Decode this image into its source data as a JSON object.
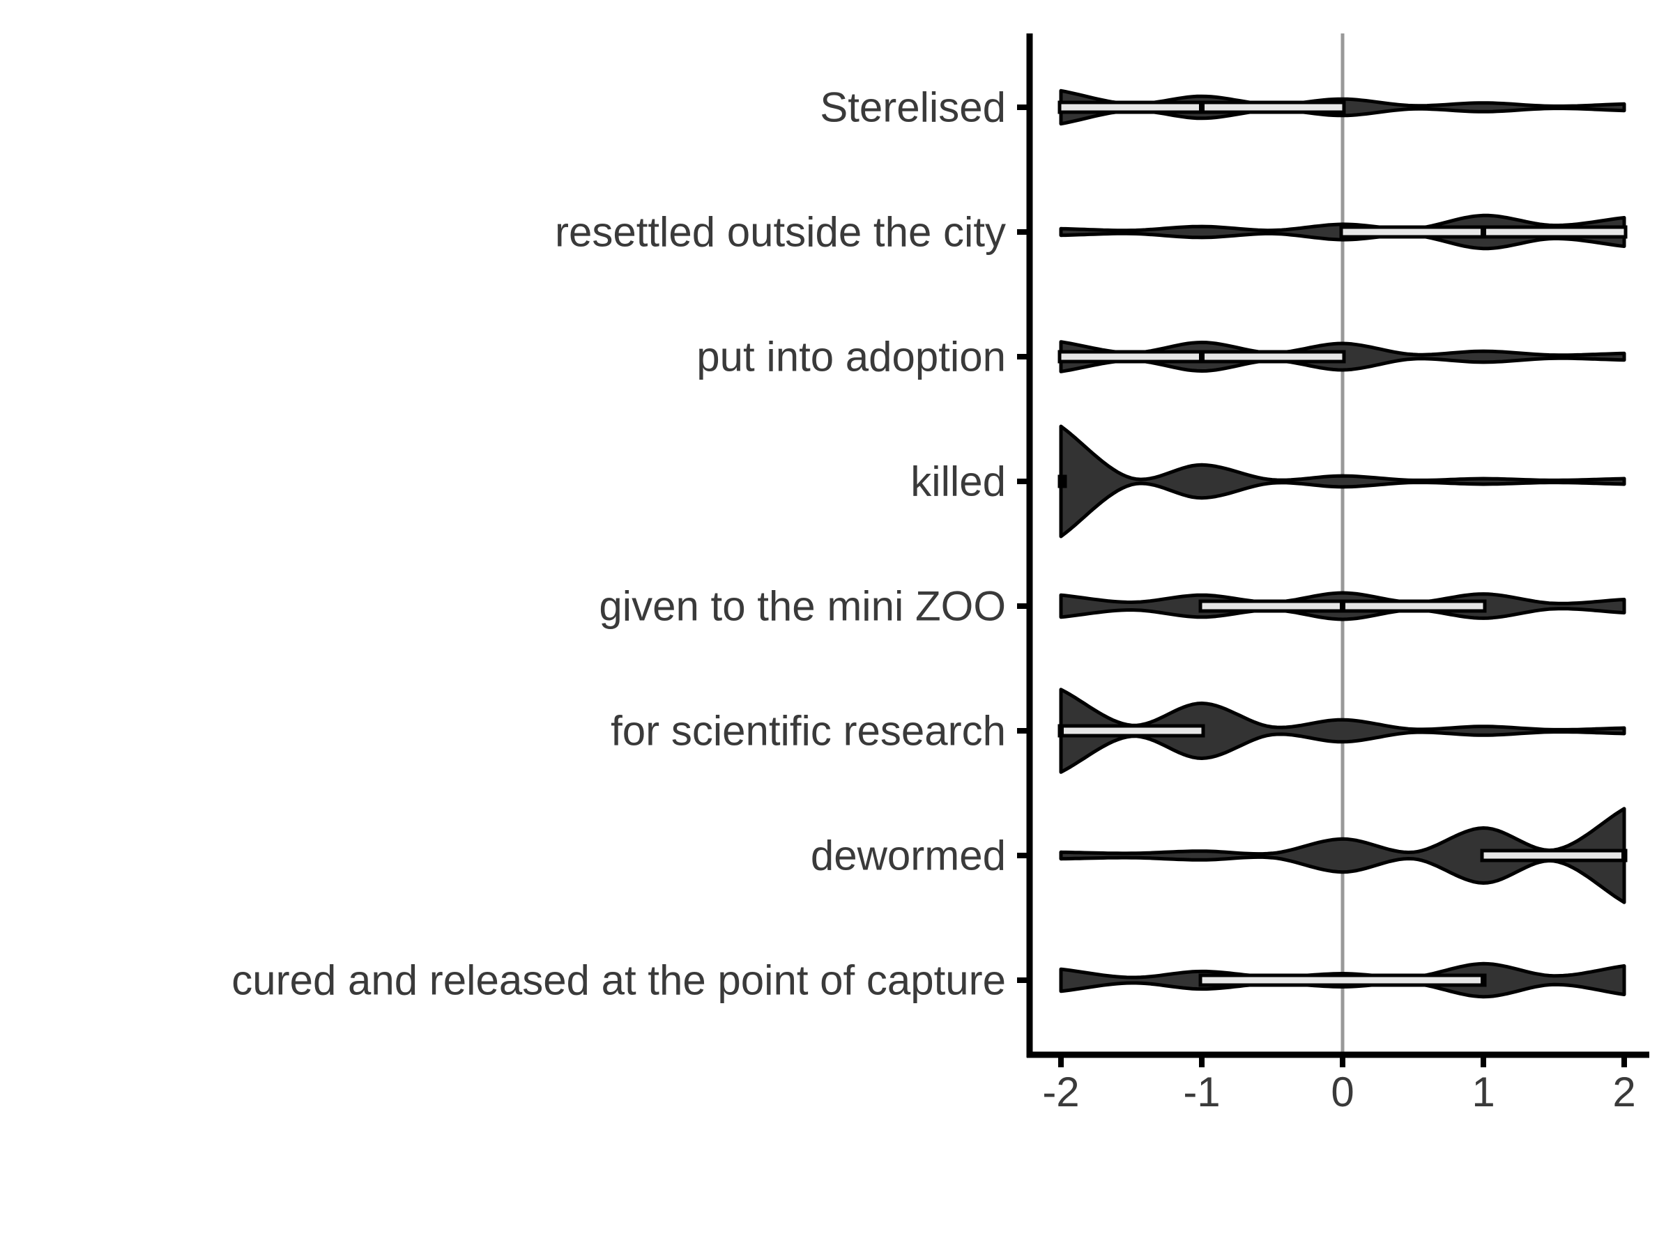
{
  "chart_data": {
    "type": "violin",
    "orientation": "horizontal",
    "title": "",
    "xlabel": "",
    "ylabel": "",
    "xlim": [
      -2.2,
      2.2
    ],
    "xticks": [
      "-2",
      "-1",
      "0",
      "1",
      "2"
    ],
    "reference_line_x": 0,
    "grid": false,
    "legend": "none",
    "colors": {
      "violin_fill": "#333333",
      "violin_stroke": "#000000",
      "box_fill": "#e6e6e6",
      "ref_line": "#999999",
      "axis": "#000000",
      "text": "#3a3a3a"
    },
    "categories": [
      {
        "label": "Sterelised",
        "density": [
          [
            -2,
            0.3
          ],
          [
            -1.5,
            0.06
          ],
          [
            -1,
            0.2
          ],
          [
            -0.5,
            0.05
          ],
          [
            0,
            0.15
          ],
          [
            0.5,
            0.03
          ],
          [
            1,
            0.08
          ],
          [
            1.5,
            0.02
          ],
          [
            2,
            0.06
          ]
        ],
        "box": {
          "q1": -2,
          "median": -1,
          "q3": 0
        }
      },
      {
        "label": "resettled outside the city",
        "density": [
          [
            -2,
            0.06
          ],
          [
            -1.5,
            0.03
          ],
          [
            -1,
            0.1
          ],
          [
            -0.5,
            0.03
          ],
          [
            0,
            0.14
          ],
          [
            0.5,
            0.06
          ],
          [
            1,
            0.3
          ],
          [
            1.5,
            0.12
          ],
          [
            2,
            0.26
          ]
        ],
        "box": {
          "q1": 0,
          "median": 1,
          "q3": 2
        }
      },
      {
        "label": "put into adoption",
        "density": [
          [
            -2,
            0.27
          ],
          [
            -1.5,
            0.07
          ],
          [
            -1,
            0.26
          ],
          [
            -0.5,
            0.07
          ],
          [
            0,
            0.24
          ],
          [
            0.5,
            0.04
          ],
          [
            1,
            0.1
          ],
          [
            1.5,
            0.03
          ],
          [
            2,
            0.06
          ]
        ],
        "box": {
          "q1": -2,
          "median": -1,
          "q3": 0
        }
      },
      {
        "label": "killed",
        "density": [
          [
            -2,
            1.0
          ],
          [
            -1.5,
            0.06
          ],
          [
            -1,
            0.3
          ],
          [
            -0.5,
            0.03
          ],
          [
            0,
            0.1
          ],
          [
            0.5,
            0.02
          ],
          [
            1,
            0.05
          ],
          [
            1.5,
            0.02
          ],
          [
            2,
            0.05
          ]
        ],
        "box": {
          "q1": -2,
          "median": -2,
          "q3": -2
        }
      },
      {
        "label": "given to the mini ZOO",
        "density": [
          [
            -2,
            0.2
          ],
          [
            -1.5,
            0.07
          ],
          [
            -1,
            0.2
          ],
          [
            -0.5,
            0.07
          ],
          [
            0,
            0.24
          ],
          [
            0.5,
            0.07
          ],
          [
            1,
            0.22
          ],
          [
            1.5,
            0.05
          ],
          [
            2,
            0.12
          ]
        ],
        "box": {
          "q1": -1,
          "median": 0,
          "q3": 1
        }
      },
      {
        "label": "for scientific research",
        "density": [
          [
            -2,
            0.75
          ],
          [
            -1.5,
            0.1
          ],
          [
            -1,
            0.5
          ],
          [
            -0.5,
            0.07
          ],
          [
            0,
            0.2
          ],
          [
            0.5,
            0.03
          ],
          [
            1,
            0.08
          ],
          [
            1.5,
            0.02
          ],
          [
            2,
            0.05
          ]
        ],
        "box": {
          "q1": -2,
          "median": -2,
          "q3": -1
        }
      },
      {
        "label": "dewormed",
        "density": [
          [
            -2,
            0.06
          ],
          [
            -1.5,
            0.04
          ],
          [
            -1,
            0.08
          ],
          [
            -0.5,
            0.04
          ],
          [
            0,
            0.3
          ],
          [
            0.5,
            0.06
          ],
          [
            1,
            0.5
          ],
          [
            1.5,
            0.1
          ],
          [
            2,
            0.85
          ]
        ],
        "box": {
          "q1": 1,
          "median": 2,
          "q3": 2
        }
      },
      {
        "label": "cured and released at the point of capture",
        "density": [
          [
            -2,
            0.2
          ],
          [
            -1.5,
            0.05
          ],
          [
            -1,
            0.16
          ],
          [
            -0.5,
            0.06
          ],
          [
            0,
            0.12
          ],
          [
            0.5,
            0.06
          ],
          [
            1,
            0.3
          ],
          [
            1.5,
            0.08
          ],
          [
            2,
            0.26
          ]
        ],
        "box": {
          "q1": -1,
          "median": 1,
          "q3": 1
        }
      }
    ]
  }
}
